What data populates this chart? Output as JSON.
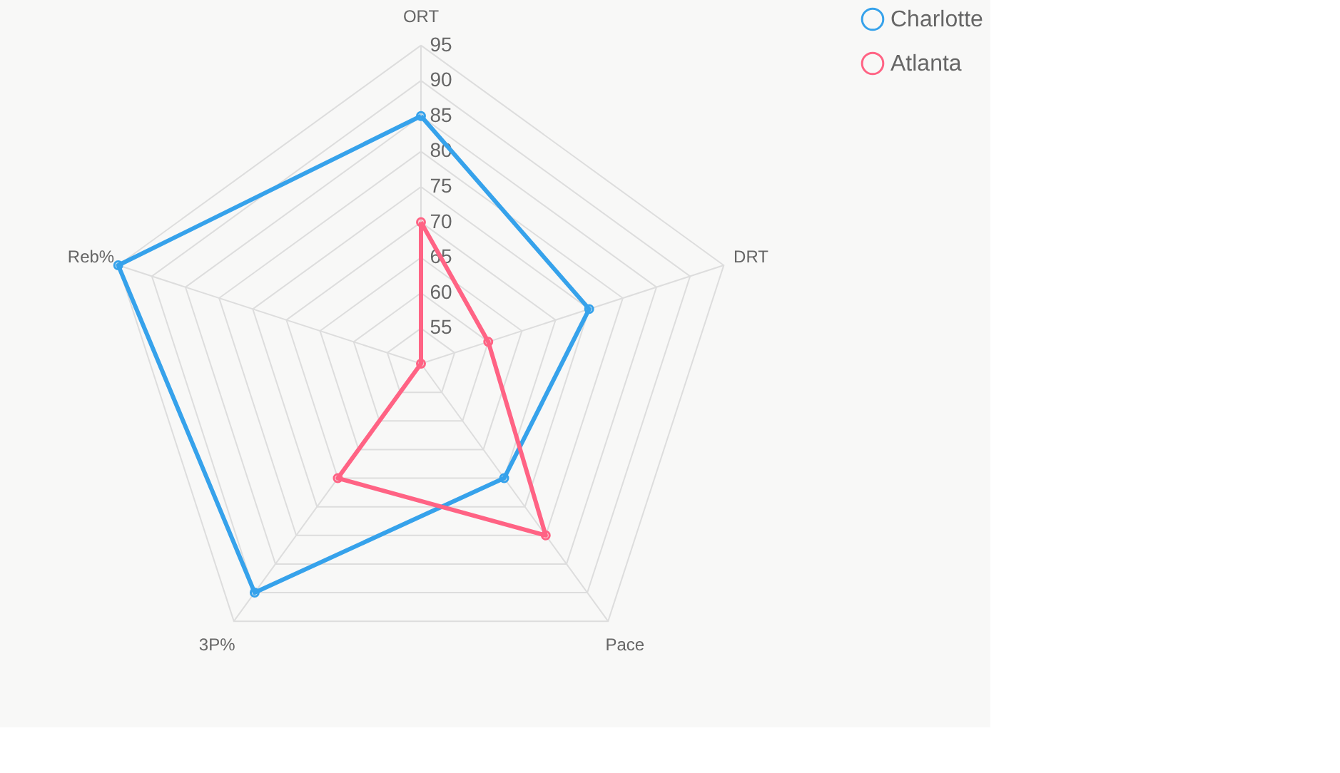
{
  "chart_data": {
    "type": "radar",
    "categories": [
      "ORT",
      "DRT",
      "Pace",
      "3P%",
      "Reb%"
    ],
    "ylim": [
      50,
      95
    ],
    "yticks": [
      55,
      60,
      65,
      70,
      75,
      80,
      85,
      90,
      95
    ],
    "grid": true,
    "legend": "right",
    "marker": "circle",
    "series": [
      {
        "name": "Charlotte",
        "color": "#36a2eb",
        "values": [
          85,
          75,
          70,
          90,
          95
        ]
      },
      {
        "name": "Atlanta",
        "color": "#ff6384",
        "values": [
          70,
          60,
          80,
          70,
          50
        ]
      }
    ]
  }
}
